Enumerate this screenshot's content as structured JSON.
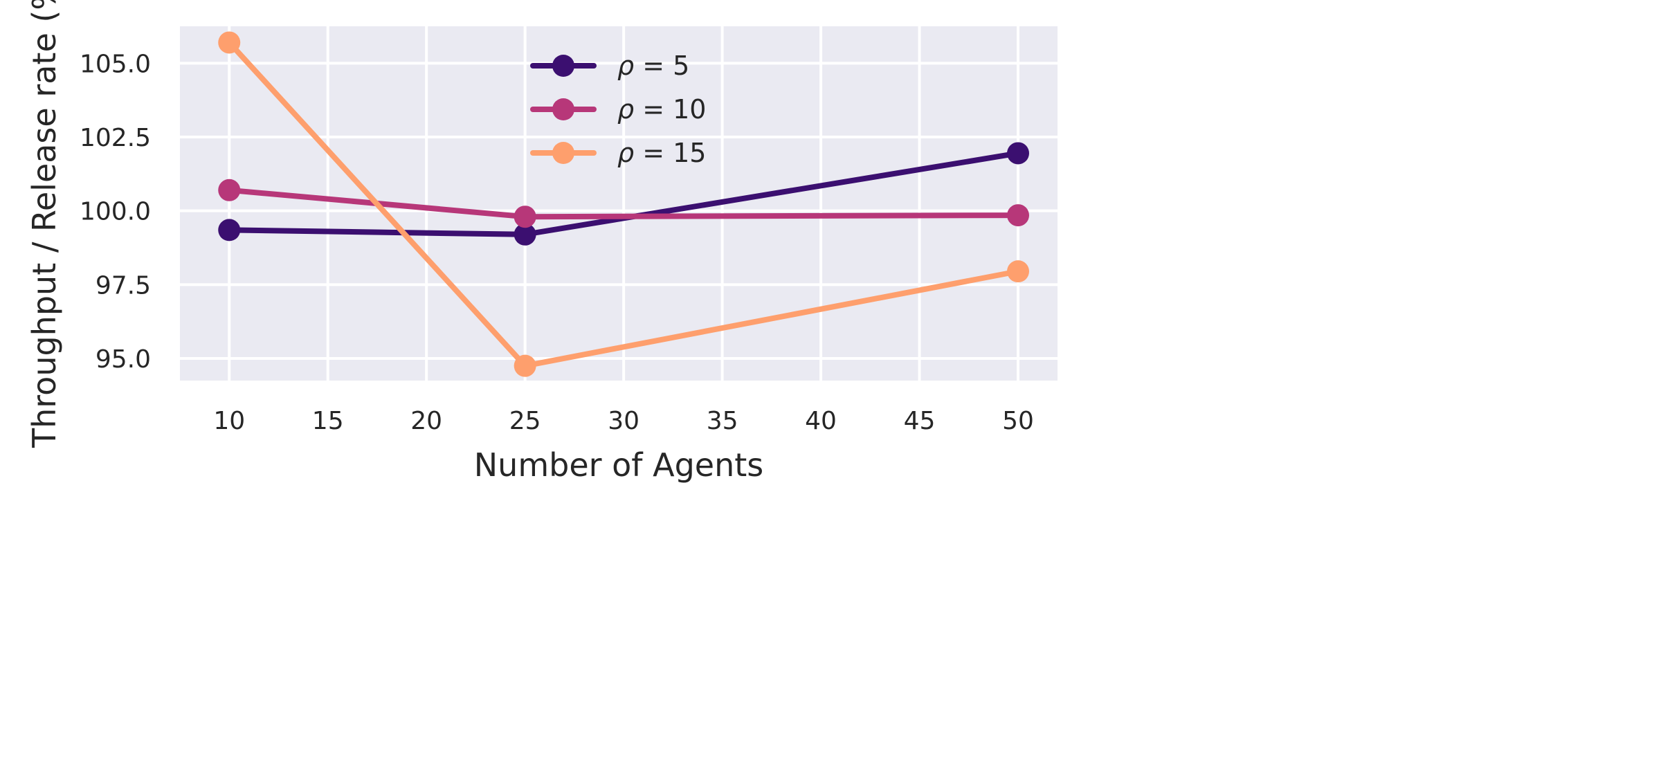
{
  "chart_data": {
    "type": "line",
    "xlabel": "Number of Agents",
    "ylabel": "Throughput / Release rate (%)",
    "x": [
      10,
      25,
      50
    ],
    "xlim": [
      7.5,
      52
    ],
    "ylim": [
      94.25,
      106.25
    ],
    "xticks": [
      10,
      15,
      20,
      25,
      30,
      35,
      40,
      45,
      50
    ],
    "xtick_labels": [
      "10",
      "15",
      "20",
      "25",
      "30",
      "35",
      "40",
      "45",
      "50"
    ],
    "yticks": [
      95.0,
      97.5,
      100.0,
      102.5,
      105.0
    ],
    "ytick_labels": [
      "95.0",
      "97.5",
      "100.0",
      "102.5",
      "105.0"
    ],
    "grid": true,
    "legend_position": "top-center",
    "series": [
      {
        "name": "ρ = 5",
        "legend_symbol": "ρ",
        "legend_rest": " = 5",
        "color": "#3b0f70",
        "values": [
          99.35,
          99.2,
          101.95
        ]
      },
      {
        "name": "ρ = 10",
        "legend_symbol": "ρ",
        "legend_rest": " = 10",
        "color": "#b73779",
        "values": [
          100.7,
          99.8,
          99.85
        ]
      },
      {
        "name": "ρ = 15",
        "legend_symbol": "ρ",
        "legend_rest": " = 15",
        "color": "#fe9f6d",
        "values": [
          105.7,
          94.75,
          97.95
        ]
      }
    ]
  },
  "colors": {
    "plot_background": "#eaeaf2",
    "grid": "#ffffff",
    "text": "#262626"
  }
}
